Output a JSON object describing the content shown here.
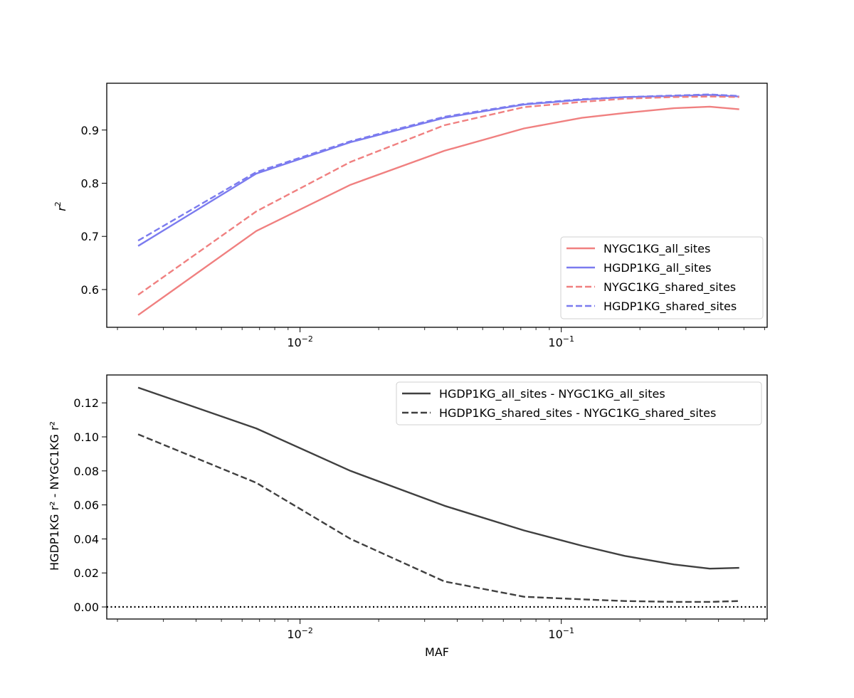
{
  "chart_data": [
    {
      "type": "line",
      "xscale": "log",
      "xlim": [
        0.00182,
        0.614
      ],
      "ylim": [
        0.529,
        0.988
      ],
      "ylabel": "r",
      "ylabel_sup": "2",
      "xlabel": "",
      "yticks": [
        0.6,
        0.7,
        0.8,
        0.9
      ],
      "ytick_labels": [
        "0.6",
        "0.7",
        "0.8",
        "0.9"
      ],
      "xticks": [
        0.01,
        0.1
      ],
      "xtick_labels": [
        {
          "base": "10",
          "exp": "−2"
        },
        {
          "base": "10",
          "exp": "−1"
        }
      ],
      "grid": false,
      "legend_placement": "lower-right",
      "x": [
        0.0024,
        0.0068,
        0.0156,
        0.0357,
        0.072,
        0.12,
        0.175,
        0.27,
        0.37,
        0.48
      ],
      "series": [
        {
          "name": "NYGC1KG_all_sites",
          "color": "#f08080",
          "dash": "solid",
          "values": [
            0.552,
            0.71,
            0.797,
            0.861,
            0.903,
            0.923,
            0.932,
            0.941,
            0.944,
            0.939
          ]
        },
        {
          "name": "HGDP1KG_all_sites",
          "color": "#7b7bef",
          "dash": "solid",
          "values": [
            0.682,
            0.818,
            0.877,
            0.923,
            0.948,
            0.957,
            0.962,
            0.964,
            0.966,
            0.963
          ]
        },
        {
          "name": "NYGC1KG_shared_sites",
          "color": "#f08080",
          "dash": "dashed",
          "values": [
            0.59,
            0.747,
            0.84,
            0.909,
            0.943,
            0.953,
            0.959,
            0.962,
            0.963,
            0.962
          ]
        },
        {
          "name": "HGDP1KG_shared_sites",
          "color": "#7b7bef",
          "dash": "dashed",
          "values": [
            0.692,
            0.821,
            0.879,
            0.925,
            0.949,
            0.958,
            0.962,
            0.965,
            0.967,
            0.964
          ]
        }
      ]
    },
    {
      "type": "line",
      "xscale": "log",
      "xlim": [
        0.00182,
        0.614
      ],
      "ylim": [
        -0.0071,
        0.1364
      ],
      "xlabel": "MAF",
      "ylabel": "HGDP1KG r² - NYGC1KG r²",
      "yticks": [
        0.0,
        0.02,
        0.04,
        0.06,
        0.08,
        0.1,
        0.12
      ],
      "ytick_labels": [
        "0.00",
        "0.02",
        "0.04",
        "0.06",
        "0.08",
        "0.10",
        "0.12"
      ],
      "xticks": [
        0.01,
        0.1
      ],
      "xtick_labels": [
        {
          "base": "10",
          "exp": "−2"
        },
        {
          "base": "10",
          "exp": "−1"
        }
      ],
      "grid": false,
      "legend_placement": "upper-right",
      "reference_line": {
        "y": 0,
        "style": "dotted",
        "color": "#000000"
      },
      "x": [
        0.0024,
        0.0068,
        0.0156,
        0.0357,
        0.072,
        0.12,
        0.175,
        0.27,
        0.37,
        0.48
      ],
      "series": [
        {
          "name": "HGDP1KG_all_sites - NYGC1KG_all_sites",
          "color": "#404040",
          "dash": "solid",
          "values": [
            0.129,
            0.105,
            0.08,
            0.0595,
            0.045,
            0.036,
            0.03,
            0.025,
            0.0225,
            0.023
          ]
        },
        {
          "name": "HGDP1KG_shared_sites - NYGC1KG_shared_sites",
          "color": "#404040",
          "dash": "dashed",
          "values": [
            0.1015,
            0.073,
            0.04,
            0.015,
            0.006,
            0.0045,
            0.0035,
            0.003,
            0.003,
            0.0035
          ]
        }
      ]
    }
  ]
}
